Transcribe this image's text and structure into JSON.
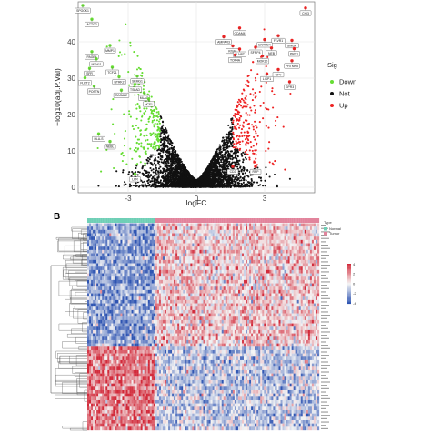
{
  "chart_data": [
    {
      "type": "scatter",
      "title": "",
      "xlabel": "logFC",
      "ylabel": "−log10(adj.P.Val)",
      "xlim": [
        -5.2,
        5.2
      ],
      "ylim": [
        -1.5,
        51
      ],
      "x_ticks": [
        "-3",
        "0",
        "3"
      ],
      "y_ticks": [
        "0",
        "10",
        "20",
        "30",
        "40"
      ],
      "grid": true,
      "legend": {
        "title": "Sig",
        "placement": "right",
        "entries": [
          {
            "label": "Down",
            "color": "#66dd33"
          },
          {
            "label": "Not",
            "color": "#111111"
          },
          {
            "label": "Up",
            "color": "#ee2222"
          }
        ]
      },
      "colors": {
        "down": "#66dd33",
        "not": "#111111",
        "up": "#ee2222"
      },
      "labeled_genes": [
        {
          "name": "SPOCK1",
          "x": -5.0,
          "y": 50.0,
          "sig": "Down"
        },
        {
          "name": "ACTG2",
          "x": -4.6,
          "y": 46.2,
          "sig": "Down"
        },
        {
          "name": "MMP1",
          "x": -3.8,
          "y": 39.0,
          "sig": "Down"
        },
        {
          "name": "PAGE4",
          "x": -4.6,
          "y": 37.3,
          "sig": "Down"
        },
        {
          "name": "MYH11",
          "x": -4.4,
          "y": 35.3,
          "sig": "Down"
        },
        {
          "name": "TCF21",
          "x": -3.7,
          "y": 33.0,
          "sig": "Down"
        },
        {
          "name": "SFR",
          "x": -4.7,
          "y": 32.7,
          "sig": "Down"
        },
        {
          "name": "FLRT2",
          "x": -4.9,
          "y": 30.1,
          "sig": "Down"
        },
        {
          "name": "NTRK2",
          "x": -3.4,
          "y": 30.4,
          "sig": "Down"
        },
        {
          "name": "SEMG1",
          "x": -2.6,
          "y": 30.6,
          "sig": "Down"
        },
        {
          "name": "POSTN",
          "x": -4.5,
          "y": 27.8,
          "sig": "Down"
        },
        {
          "name": "TSLAD",
          "x": -2.7,
          "y": 28.3,
          "sig": "Down"
        },
        {
          "name": "RASAL2",
          "x": -3.3,
          "y": 26.7,
          "sig": "Down"
        },
        {
          "name": "MLAC",
          "x": -2.3,
          "y": 26.0,
          "sig": "Down"
        },
        {
          "name": "NCF1",
          "x": -2.1,
          "y": 24.3,
          "sig": "Down"
        },
        {
          "name": "HLA-S",
          "x": -4.3,
          "y": 14.7,
          "sig": "Down"
        },
        {
          "name": "NEBL",
          "x": -3.8,
          "y": 12.6,
          "sig": "Down"
        },
        {
          "name": "LPR",
          "x": -2.7,
          "y": 3.6,
          "sig": "Down"
        },
        {
          "name": "CHI3",
          "x": 4.8,
          "y": 49.3,
          "sig": "Up"
        },
        {
          "name": "ODAM4",
          "x": 1.9,
          "y": 43.8,
          "sig": "Up"
        },
        {
          "name": "AMPAR3",
          "x": 1.2,
          "y": 41.4,
          "sig": "Up"
        },
        {
          "name": "FLVR1",
          "x": 3.6,
          "y": 41.7,
          "sig": "Up"
        },
        {
          "name": "ENTPD4",
          "x": 3.0,
          "y": 40.6,
          "sig": "Up"
        },
        {
          "name": "SIM3A",
          "x": 4.2,
          "y": 40.4,
          "sig": "Up"
        },
        {
          "name": "KISS1",
          "x": 1.6,
          "y": 38.9,
          "sig": "Up"
        },
        {
          "name": "ALNPT",
          "x": 1.9,
          "y": 38.0,
          "sig": "Up"
        },
        {
          "name": "SFRP4",
          "x": 2.6,
          "y": 38.5,
          "sig": "Up"
        },
        {
          "name": "NEB",
          "x": 3.3,
          "y": 38.3,
          "sig": "Up"
        },
        {
          "name": "PRC1",
          "x": 4.3,
          "y": 38.1,
          "sig": "Up"
        },
        {
          "name": "TOP4A",
          "x": 1.7,
          "y": 36.4,
          "sig": "Up"
        },
        {
          "name": "MOK30",
          "x": 2.9,
          "y": 36.1,
          "sig": "Up"
        },
        {
          "name": "PRTMP5",
          "x": 4.2,
          "y": 34.8,
          "sig": "Up"
        },
        {
          "name": "UFY",
          "x": 3.6,
          "y": 32.4,
          "sig": "Up"
        },
        {
          "name": "LISP1",
          "x": 3.1,
          "y": 31.2,
          "sig": "Up"
        },
        {
          "name": "GPR3",
          "x": 4.1,
          "y": 29.0,
          "sig": "Up"
        },
        {
          "name": "CD2",
          "x": 1.6,
          "y": 5.7,
          "sig": "Up"
        },
        {
          "name": "RPP",
          "x": 2.6,
          "y": 5.7,
          "sig": "Up"
        }
      ]
    },
    {
      "type": "heatmap",
      "panel_label": "B",
      "legend": {
        "title": "Type",
        "entries": [
          "Normal",
          "Tumor"
        ],
        "scale_ticks": [
          "4",
          "2",
          "0",
          "-2",
          "-4"
        ]
      },
      "colors": {
        "normal_annotation": "#6fcfb6",
        "tumor_annotation": "#e2849c",
        "high": "#d22a3a",
        "mid": "#f5f5f5",
        "low": "#2e54b2"
      },
      "n_rows": 62,
      "n_columns": 126,
      "normal_columns": 37,
      "tumor_columns": 89,
      "upper_rows_high_in": "Tumor",
      "lower_rows_high_in": "Normal"
    }
  ]
}
